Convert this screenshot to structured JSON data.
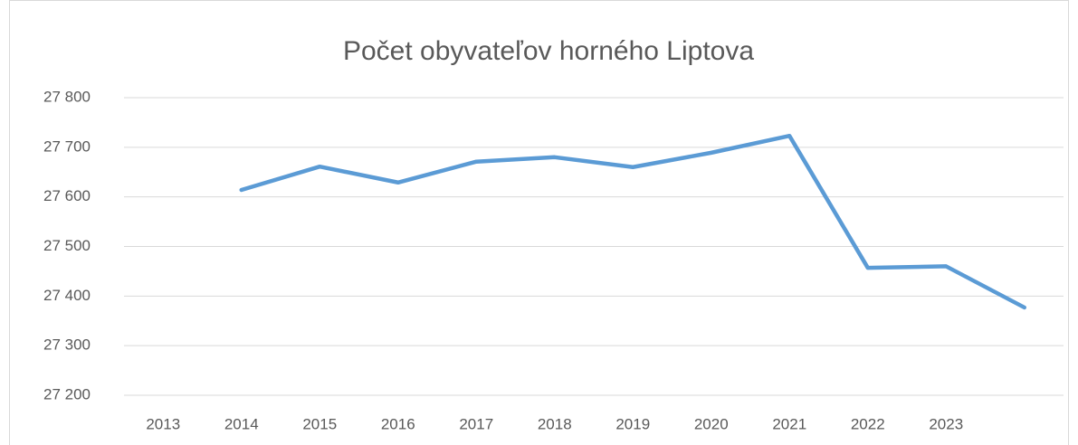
{
  "chart_data": {
    "type": "line",
    "title": "Počet obyvateľov horného Liptova",
    "categories": [
      "2013",
      "2014",
      "2015",
      "2016",
      "2017",
      "2018",
      "2019",
      "2020",
      "2021",
      "2022",
      "2023",
      null
    ],
    "series": [
      {
        "name": "Počet obyvateľov",
        "color": "#5b9bd5",
        "values": [
          null,
          27614,
          27661,
          27629,
          27671,
          27680,
          27660,
          27689,
          27723,
          27457,
          27460,
          27377
        ]
      }
    ],
    "ylim": [
      27200,
      27800
    ],
    "yticks": [
      {
        "value": 27200,
        "label": "27 200"
      },
      {
        "value": 27300,
        "label": "27 300"
      },
      {
        "value": 27400,
        "label": "27 400"
      },
      {
        "value": 27500,
        "label": "27 500"
      },
      {
        "value": 27600,
        "label": "27 600"
      },
      {
        "value": 27700,
        "label": "27 700"
      },
      {
        "value": 27800,
        "label": "27 800"
      }
    ],
    "grid": true
  }
}
